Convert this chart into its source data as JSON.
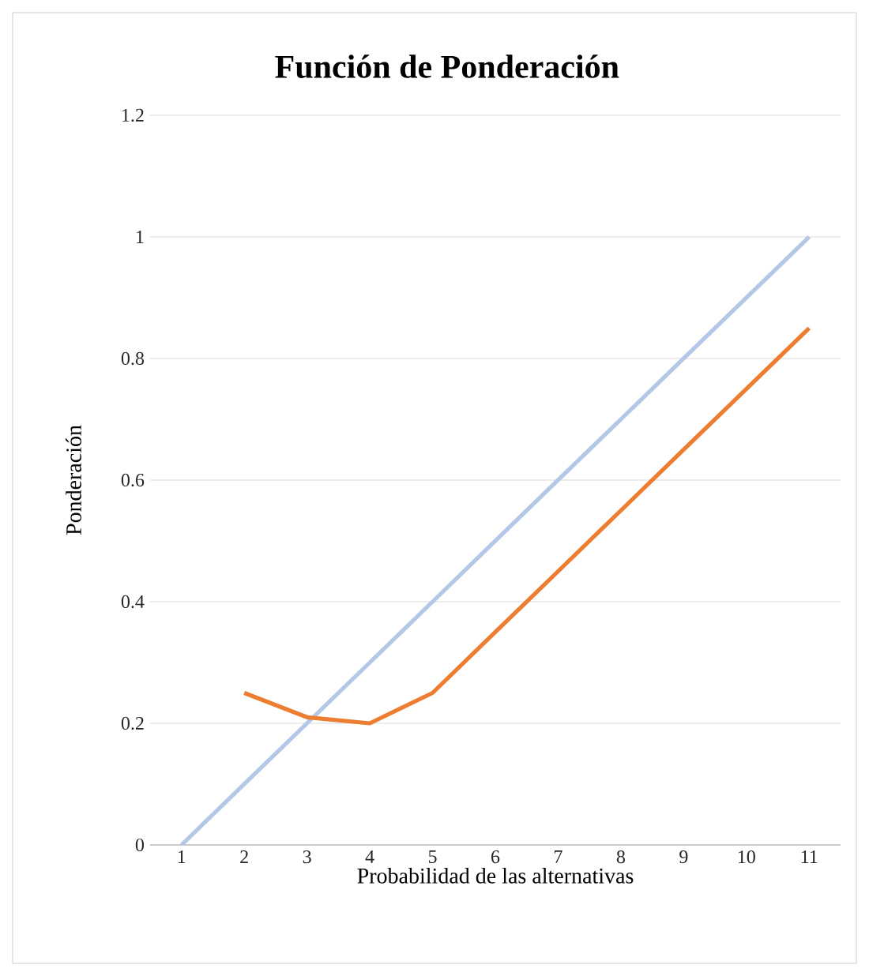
{
  "chart_data": {
    "type": "line",
    "title": "**Función de Ponderación**",
    "xlabel": "Probabilidad de las alternativas",
    "ylabel": "Ponderación",
    "categories": [
      "1",
      "2",
      "3",
      "4",
      "5",
      "6",
      "7",
      "8",
      "9",
      "10",
      "11"
    ],
    "series": [
      {
        "color": "#b4c7e7",
        "values": [
          0,
          0.1,
          0.2,
          0.3,
          0.4,
          0.5,
          0.6,
          0.7,
          0.8,
          0.9,
          1.0
        ]
      },
      {
        "color": "#ed7d31",
        "values": [
          null,
          0.25,
          0.21,
          0.2,
          0.25,
          0.35,
          0.45,
          0.55,
          0.65,
          0.75,
          0.85
        ]
      }
    ],
    "ylim": [
      0,
      1.2
    ],
    "yticks": [
      0,
      0.2,
      0.4,
      0.6,
      0.8,
      1,
      1.2
    ],
    "grid": "y",
    "marker": "none",
    "line_style": "solid"
  }
}
